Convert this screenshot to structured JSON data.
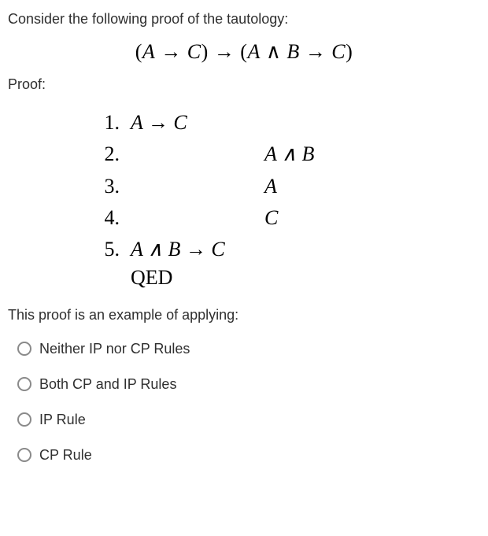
{
  "intro": "Consider the following proof of the tautology:",
  "tautology": {
    "lhs_open": "(",
    "A": "A",
    "arrow1": " → ",
    "C": "C",
    "lhs_close": ")",
    "main_arrow": " → ",
    "rhs_open": "(",
    "A2": "A",
    "and": " ∧ ",
    "B": "B",
    "arrow2": " → ",
    "C2": "C",
    "rhs_close": ")"
  },
  "proof_label": "Proof:",
  "proof": {
    "rows": [
      {
        "num": "1.",
        "col1": "A → C",
        "col2": ""
      },
      {
        "num": "2.",
        "col1": "",
        "col2": "A ∧ B"
      },
      {
        "num": "3.",
        "col1": "",
        "col2": "A"
      },
      {
        "num": "4.",
        "col1": "",
        "col2": "C"
      },
      {
        "num": "5.",
        "col1": "A ∧ B → C",
        "col2": ""
      }
    ],
    "qed": "QED"
  },
  "question": "This proof is an example of applying:",
  "options": [
    "Neither IP nor CP Rules",
    "Both CP and IP Rules",
    "IP Rule",
    "CP Rule"
  ]
}
